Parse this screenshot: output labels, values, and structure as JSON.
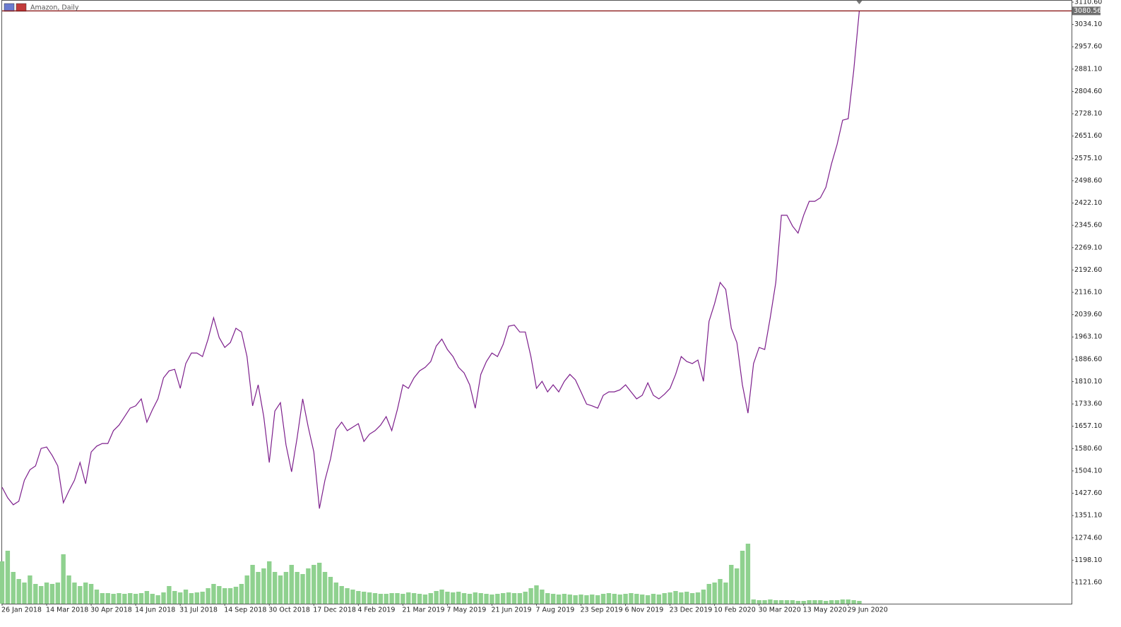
{
  "chart_data": {
    "type": "line",
    "title": "Amazon, Daily",
    "color": "#7d1f8c",
    "volume_color": "#8fd18f",
    "last_price_color": "#8b1a1a",
    "last_price": 3080.56,
    "ylim": [
      1049,
      3110.6
    ],
    "yticks": [
      {
        "value": 3110.6,
        "label": "3110.60"
      },
      {
        "value": 3034.1,
        "label": "3034.10"
      },
      {
        "value": 2957.6,
        "label": "2957.60"
      },
      {
        "value": 2881.1,
        "label": "2881.10"
      },
      {
        "value": 2804.6,
        "label": "2804.60"
      },
      {
        "value": 2728.1,
        "label": "2728.10"
      },
      {
        "value": 2651.6,
        "label": "2651.60"
      },
      {
        "value": 2575.1,
        "label": "2575.10"
      },
      {
        "value": 2498.6,
        "label": "2498.60"
      },
      {
        "value": 2422.1,
        "label": "2422.10"
      },
      {
        "value": 2345.6,
        "label": "2345.60"
      },
      {
        "value": 2269.1,
        "label": "2269.10"
      },
      {
        "value": 2192.6,
        "label": "2192.60"
      },
      {
        "value": 2116.1,
        "label": "2116.10"
      },
      {
        "value": 2039.6,
        "label": "2039.60"
      },
      {
        "value": 1963.1,
        "label": "1963.10"
      },
      {
        "value": 1886.6,
        "label": "1886.60"
      },
      {
        "value": 1810.1,
        "label": "1810.10"
      },
      {
        "value": 1733.6,
        "label": "1733.60"
      },
      {
        "value": 1657.1,
        "label": "1657.10"
      },
      {
        "value": 1580.6,
        "label": "1580.60"
      },
      {
        "value": 1504.1,
        "label": "1504.10"
      },
      {
        "value": 1427.6,
        "label": "1427.60"
      },
      {
        "value": 1351.1,
        "label": "1351.10"
      },
      {
        "value": 1274.6,
        "label": "1274.60"
      },
      {
        "value": 1198.1,
        "label": "1198.10"
      },
      {
        "value": 1121.6,
        "label": "1121.60"
      }
    ],
    "categories": [
      "26 Jan 2018",
      null,
      null,
      null,
      null,
      null,
      null,
      null,
      "14 Mar 2018",
      null,
      null,
      null,
      null,
      null,
      null,
      null,
      "30 Apr 2018",
      null,
      null,
      null,
      null,
      null,
      null,
      null,
      "14 Jun 2018",
      null,
      null,
      null,
      null,
      null,
      null,
      null,
      "31 Jul 2018",
      null,
      null,
      null,
      null,
      null,
      null,
      null,
      "14 Sep 2018",
      null,
      null,
      null,
      null,
      null,
      null,
      null,
      "30 Oct 2018",
      null,
      null,
      null,
      null,
      null,
      null,
      null,
      "17 Dec 2018",
      null,
      null,
      null,
      null,
      null,
      null,
      null,
      "4 Feb 2019",
      null,
      null,
      null,
      null,
      null,
      null,
      null,
      "21 Mar 2019",
      null,
      null,
      null,
      null,
      null,
      null,
      null,
      "7 May 2019",
      null,
      null,
      null,
      null,
      null,
      null,
      null,
      "21 Jun 2019",
      null,
      null,
      null,
      null,
      null,
      null,
      null,
      "7 Aug 2019",
      null,
      null,
      null,
      null,
      null,
      null,
      null,
      "23 Sep 2019",
      null,
      null,
      null,
      null,
      null,
      null,
      null,
      "6 Nov 2019",
      null,
      null,
      null,
      null,
      null,
      null,
      null,
      "23 Dec 2019",
      null,
      null,
      null,
      null,
      null,
      null,
      null,
      "10 Feb 2020",
      null,
      null,
      null,
      null,
      null,
      null,
      null,
      "30 Mar 2020",
      null,
      null,
      null,
      null,
      null,
      null,
      null,
      "13 May 2020",
      null,
      null,
      null,
      null,
      null,
      null,
      null,
      "29 Jun 2020",
      null,
      null
    ],
    "values": [
      1448,
      1412,
      1388,
      1400,
      1472,
      1508,
      1521,
      1581,
      1586,
      1557,
      1521,
      1395,
      1436,
      1472,
      1533,
      1460,
      1569,
      1589,
      1598,
      1598,
      1642,
      1661,
      1690,
      1719,
      1727,
      1751,
      1671,
      1714,
      1751,
      1823,
      1847,
      1852,
      1787,
      1872,
      1908,
      1908,
      1896,
      1956,
      2029,
      1961,
      1927,
      1944,
      1993,
      1980,
      1896,
      1727,
      1799,
      1690,
      1533,
      1709,
      1738,
      1593,
      1501,
      1617,
      1751,
      1654,
      1569,
      1375,
      1472,
      1545,
      1646,
      1671,
      1642,
      1654,
      1666,
      1605,
      1630,
      1642,
      1661,
      1690,
      1642,
      1714,
      1799,
      1787,
      1823,
      1847,
      1859,
      1879,
      1932,
      1956,
      1920,
      1896,
      1859,
      1840,
      1799,
      1719,
      1835,
      1879,
      1908,
      1896,
      1937,
      2000,
      2004,
      1980,
      1980,
      1896,
      1787,
      1811,
      1775,
      1799,
      1775,
      1811,
      1835,
      1816,
      1775,
      1733,
      1727,
      1719,
      1763,
      1775,
      1775,
      1782,
      1799,
      1775,
      1751,
      1763,
      1806,
      1763,
      1751,
      1767,
      1787,
      1835,
      1896,
      1879,
      1872,
      1884,
      1811,
      2017,
      2077,
      2150,
      2126,
      1993,
      1944,
      1799,
      1702,
      1872,
      1927,
      1920,
      2029,
      2150,
      2380,
      2380,
      2343,
      2319,
      2380,
      2428,
      2428,
      2440,
      2476,
      2556,
      2622,
      2706,
      2711,
      2876,
      3080.56
    ],
    "volume": [
      60,
      75,
      45,
      35,
      30,
      40,
      28,
      25,
      30,
      28,
      30,
      70,
      40,
      30,
      25,
      30,
      28,
      20,
      15,
      15,
      14,
      15,
      14,
      15,
      14,
      15,
      18,
      14,
      12,
      16,
      25,
      18,
      16,
      20,
      15,
      16,
      17,
      22,
      28,
      25,
      22,
      22,
      24,
      28,
      40,
      55,
      45,
      50,
      60,
      45,
      40,
      45,
      55,
      45,
      42,
      50,
      55,
      58,
      45,
      38,
      30,
      25,
      22,
      20,
      18,
      17,
      16,
      15,
      14,
      14,
      15,
      15,
      14,
      16,
      15,
      14,
      13,
      15,
      18,
      20,
      17,
      16,
      17,
      15,
      14,
      16,
      15,
      14,
      13,
      14,
      15,
      16,
      15,
      15,
      17,
      22,
      26,
      20,
      15,
      14,
      13,
      14,
      13,
      12,
      13,
      12,
      13,
      12,
      14,
      15,
      14,
      13,
      14,
      15,
      14,
      13,
      12,
      14,
      13,
      15,
      16,
      18,
      16,
      17,
      15,
      16,
      20,
      28,
      30,
      35,
      30,
      55,
      50,
      75,
      85,
      6,
      5,
      5,
      6,
      5,
      5,
      5,
      5,
      4,
      4,
      5,
      5,
      5,
      4,
      5,
      5,
      6,
      6,
      5,
      4
    ]
  }
}
